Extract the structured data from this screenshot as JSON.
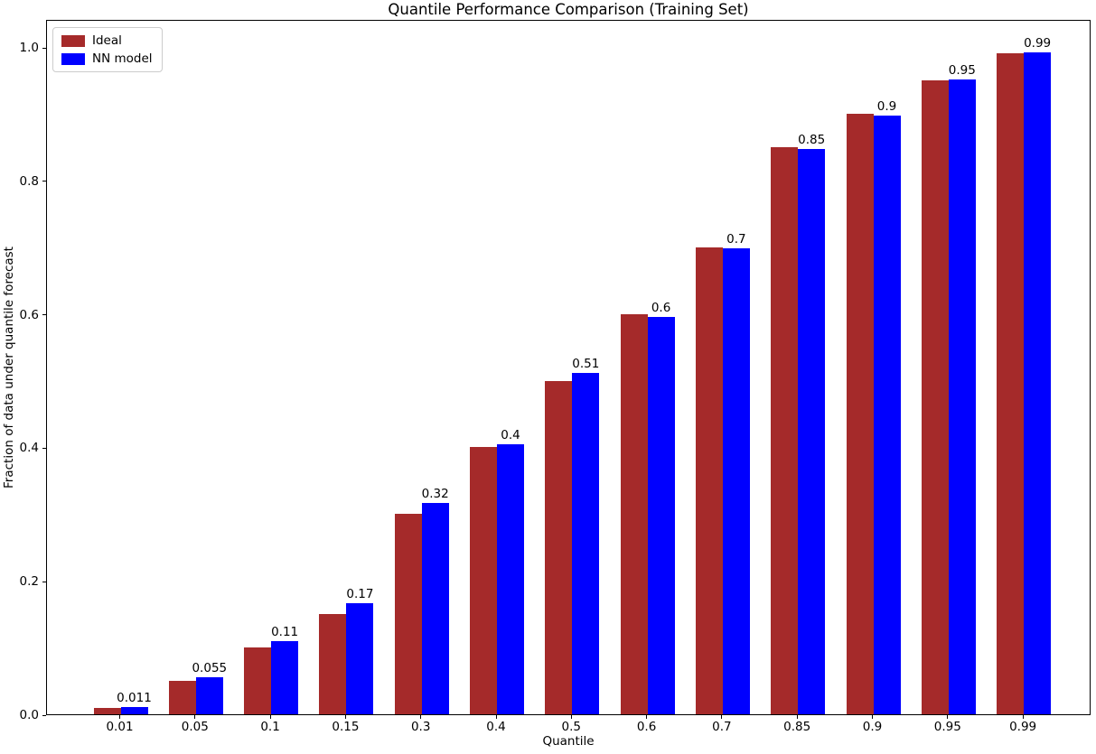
{
  "chart_data": {
    "type": "bar",
    "title": "Quantile Performance Comparison (Training Set)",
    "xlabel": "Quantile",
    "ylabel": "Fraction of data under quantile forecast",
    "categories": [
      "0.01",
      "0.05",
      "0.1",
      "0.15",
      "0.3",
      "0.4",
      "0.5",
      "0.6",
      "0.7",
      "0.85",
      "0.9",
      "0.95",
      "0.99"
    ],
    "series": [
      {
        "name": "Ideal",
        "color": "#a52a2a",
        "values": [
          0.01,
          0.05,
          0.1,
          0.15,
          0.3,
          0.4,
          0.5,
          0.6,
          0.7,
          0.85,
          0.9,
          0.95,
          0.99
        ]
      },
      {
        "name": "NN model",
        "color": "#0000ff",
        "values": [
          0.011,
          0.055,
          0.109,
          0.167,
          0.316,
          0.404,
          0.511,
          0.596,
          0.698,
          0.847,
          0.897,
          0.951,
          0.992
        ],
        "bar_labels": [
          "0.011",
          "0.055",
          "0.11",
          "0.17",
          "0.32",
          "0.4",
          "0.51",
          "0.6",
          "0.7",
          "0.85",
          "0.9",
          "0.95",
          "0.99"
        ]
      }
    ],
    "y_ticks": [
      {
        "label": "0.0",
        "value": 0.0
      },
      {
        "label": "0.2",
        "value": 0.2
      },
      {
        "label": "0.4",
        "value": 0.4
      },
      {
        "label": "0.6",
        "value": 0.6
      },
      {
        "label": "0.8",
        "value": 0.8
      },
      {
        "label": "1.0",
        "value": 1.0
      }
    ],
    "ylim": [
      0,
      1.042
    ],
    "grid": false,
    "legend_position": "upper left",
    "axes_box": true,
    "background_color": "#ffffff",
    "text_color": "#000000"
  }
}
